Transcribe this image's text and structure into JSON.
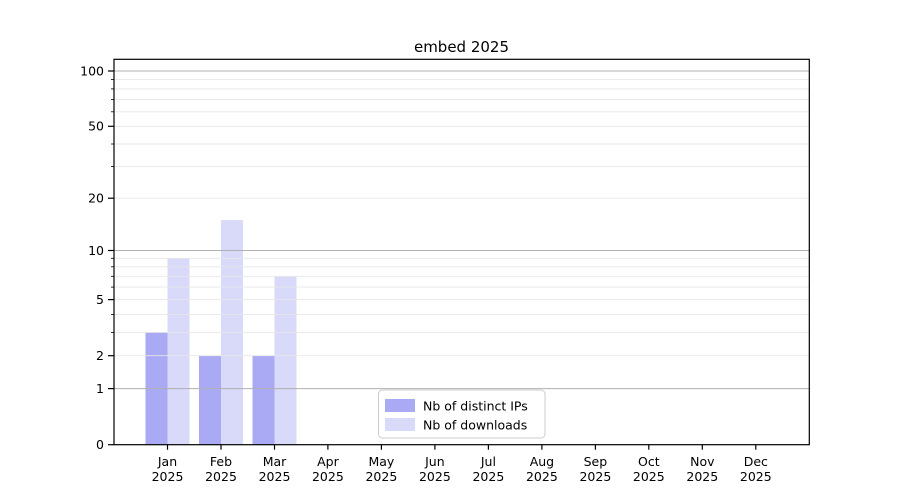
{
  "title": "embed 2025",
  "chart_data": {
    "type": "bar",
    "title": "embed 2025",
    "categories": [
      "Jan",
      "Feb",
      "Mar",
      "Apr",
      "May",
      "Jun",
      "Jul",
      "Aug",
      "Sep",
      "Oct",
      "Nov",
      "Dec"
    ],
    "year_label": "2025",
    "series": [
      {
        "name": "Nb of distinct IPs",
        "color": "#a9a9f4",
        "values": [
          3,
          2,
          2,
          0,
          0,
          0,
          0,
          0,
          0,
          0,
          0,
          0
        ]
      },
      {
        "name": "Nb of downloads",
        "color": "#d9d9f9",
        "values": [
          9,
          15,
          7,
          0,
          0,
          0,
          0,
          0,
          0,
          0,
          0,
          0
        ]
      }
    ],
    "y_axis": {
      "scale": "log1p",
      "tick_values": [
        0,
        1,
        2,
        5,
        10,
        20,
        50,
        100
      ],
      "major_gridlines": [
        1,
        10,
        100
      ],
      "minor_gridlines": [
        2,
        3,
        4,
        5,
        6,
        7,
        8,
        9,
        20,
        30,
        40,
        50,
        60,
        70,
        80,
        90
      ],
      "range": [
        0,
        100
      ]
    },
    "legend": {
      "position": "lower-center",
      "entries": [
        "Nb of distinct IPs",
        "Nb of downloads"
      ]
    },
    "colors": {
      "major_grid": "#b0b0b0",
      "minor_grid": "#e7e7e7",
      "spine": "#000000",
      "text": "#000000",
      "legend_border": "#cccccc",
      "background": "#ffffff"
    },
    "grid": true,
    "legend_visible": true
  }
}
